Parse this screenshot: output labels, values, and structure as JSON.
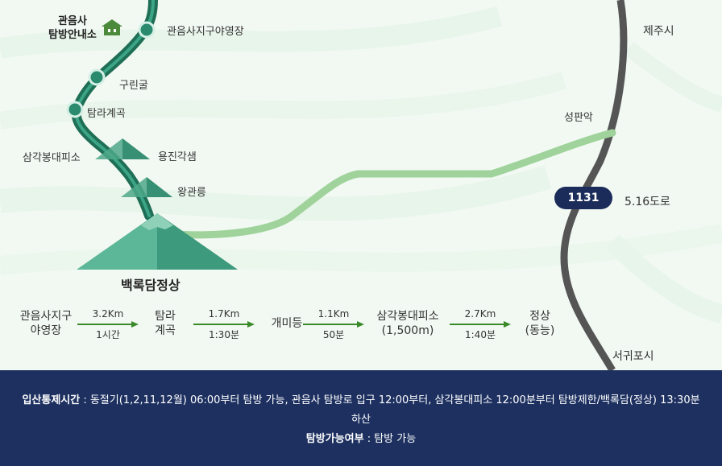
{
  "map": {
    "labels": {
      "info_center": [
        "관음사",
        "탐방안내소"
      ],
      "campsite": "관음사지구야영장",
      "gurin_cave": "구린굴",
      "tamra_valley": "탐라계곡",
      "samgak_shelter": "삼각봉대피소",
      "yongjin_hut": "용진각샘",
      "wanggwan": "왕관릉",
      "summit": "백록담정상",
      "seongpanak": "성판악",
      "jeju_city": "제주시",
      "seogwipo_city": "서귀포시",
      "route_number": "1131",
      "road_name": "5.16도로"
    },
    "colors": {
      "trail": "#2a8a6e",
      "trail_dark": "#1f6e56",
      "seongpanak_trail": "#9fd39b",
      "road": "#555555",
      "badge": "#1c2c5a",
      "background": "#f2f9f3"
    },
    "icons": [
      "house-icon",
      "waypoint-icon",
      "mountain-icon"
    ]
  },
  "course": {
    "stops": [
      "관음사지구\n야영장",
      "탐라\n계곡",
      "개미등",
      "삼각봉대피소\n(1,500m)",
      "정상\n(동능)"
    ],
    "segments": [
      {
        "distance": "3.2Km",
        "time": "1시간"
      },
      {
        "distance": "1.7Km",
        "time": "1:30분"
      },
      {
        "distance": "1.1Km",
        "time": "50분"
      },
      {
        "distance": "2.7Km",
        "time": "1:40분"
      }
    ]
  },
  "notice": {
    "control_title": "입산통제시간",
    "control_text": " : 동절기(1,2,11,12월) 06:00부터 탐방 가능, 관음사 탐방로 입구 12:00부터, 삼각봉대피소 12:00분부터 탐방제한/백록담(정상) 13:30분",
    "control_text_cont": "하산",
    "avail_title": "탐방가능여부",
    "avail_text": " : 탐방 가능"
  }
}
